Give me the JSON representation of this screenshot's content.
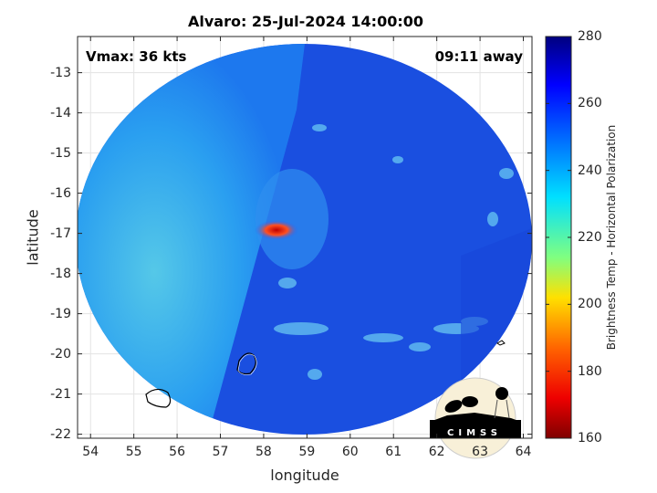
{
  "title": "Alvaro: 25-Jul-2024 14:00:00",
  "annotations": {
    "vmax": "Vmax: 36 kts",
    "away": "09:11 away"
  },
  "axes": {
    "xlabel": "longitude",
    "ylabel": "latitude",
    "xlim": [
      53.7,
      64.2
    ],
    "ylim": [
      -22.1,
      -12.1
    ],
    "xticks": [
      "54",
      "55",
      "56",
      "57",
      "58",
      "59",
      "60",
      "61",
      "62",
      "63",
      "64"
    ],
    "yticks": [
      "-13",
      "-14",
      "-15",
      "-16",
      "-17",
      "-18",
      "-19",
      "-20",
      "-21",
      "-22"
    ],
    "grid": true
  },
  "colorbar": {
    "label": "Brightness Temp - Horizontal Polarization",
    "range": [
      160,
      280
    ],
    "ticks": [
      "280",
      "260",
      "240",
      "220",
      "200",
      "180",
      "160"
    ],
    "colormap": "jet"
  },
  "logo": {
    "text": "CIMSS"
  },
  "colors": {
    "background_field": "#1a4fe0",
    "warm_swath": "#2aa8f0",
    "hot_spot": "#d01010"
  }
}
